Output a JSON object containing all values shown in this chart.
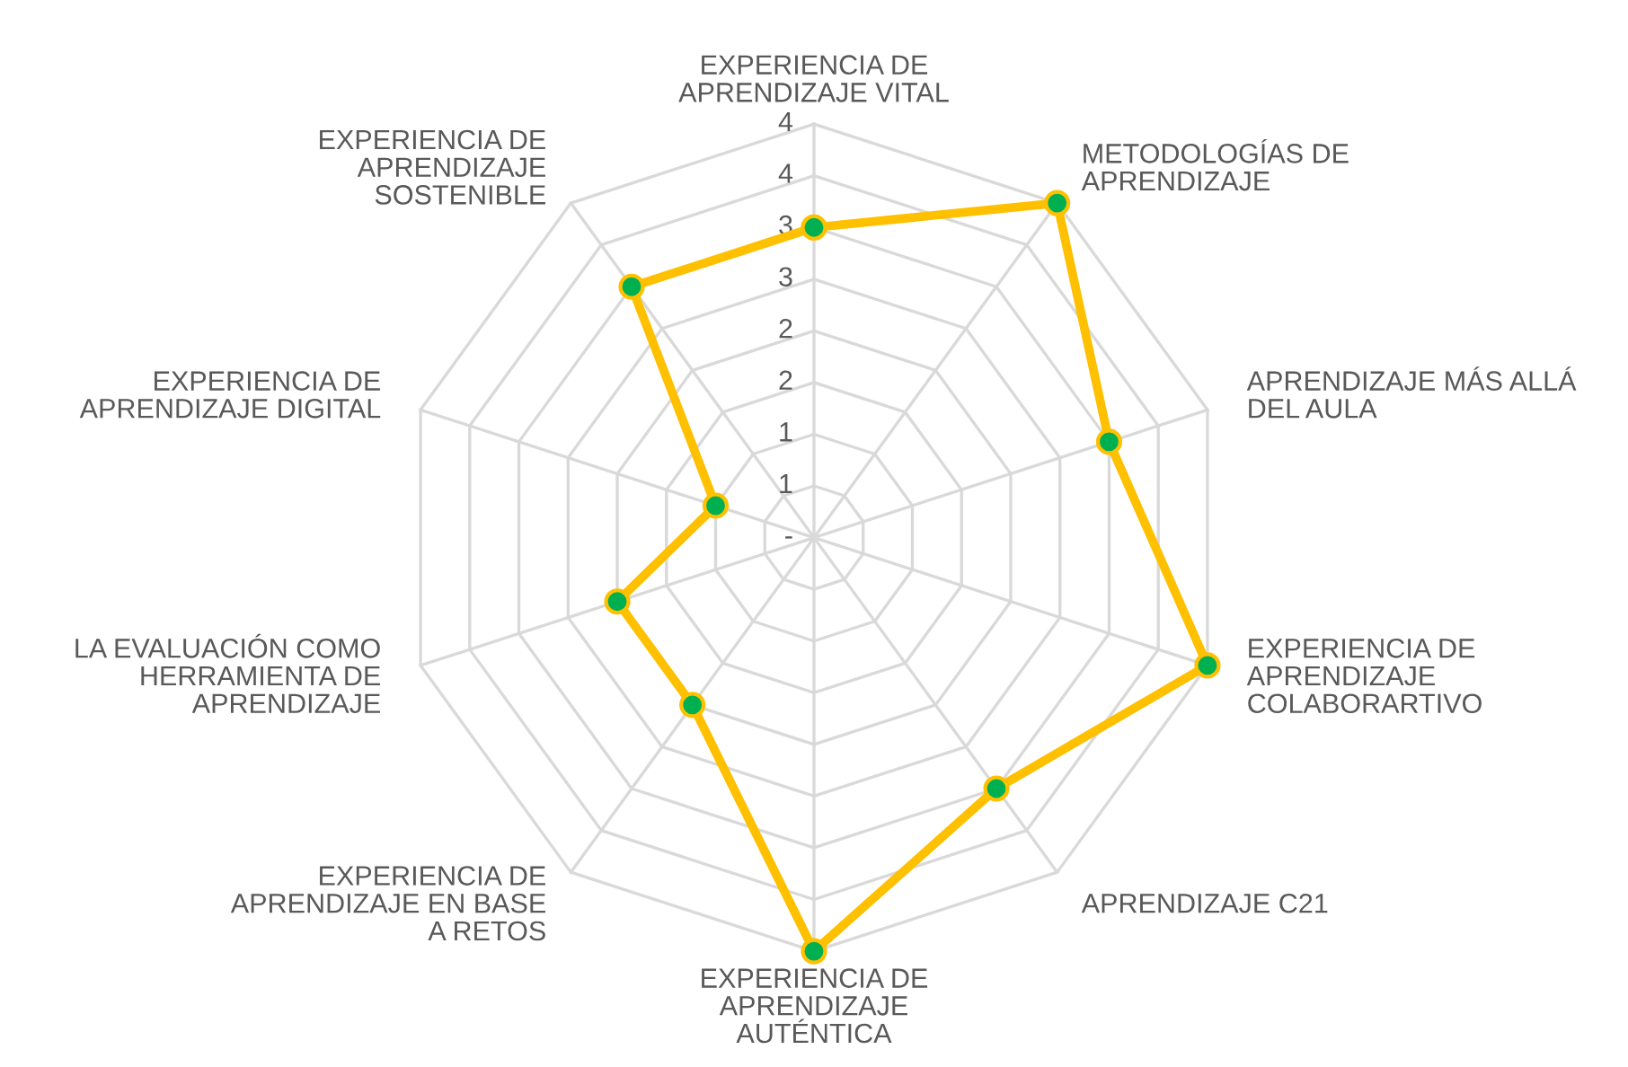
{
  "chart_data": {
    "type": "radar",
    "categories": [
      "EXPERIENCIA DE\nAPRENDIZAJE VITAL",
      "METODOLOGÍAS DE\nAPRENDIZAJE",
      "APRENDIZAJE MÁS ALLÁ\nDEL AULA",
      "EXPERIENCIA DE\nAPRENDIZAJE\nCOLABORARTIVO",
      "APRENDIZAJE C21",
      "EXPERIENCIA DE\nAPRENDIZAJE\nAUTÉNTICA",
      "EXPERIENCIA DE\nAPRENDIZAJE EN BASE\nA RETOS",
      "LA EVALUACIÓN COMO\nHERRAMIENTA DE\nAPRENDIZAJE",
      "EXPERIENCIA DE\nAPRENDIZAJE DIGITAL",
      "EXPERIENCIA DE\nAPRENDIZAJE\nSOSTENIBLE"
    ],
    "series": [
      {
        "color": "#ffc000",
        "values": [
          3,
          4,
          3,
          4,
          3,
          4,
          2,
          2,
          1,
          3
        ]
      }
    ],
    "ylim": [
      0,
      4
    ],
    "yticks": [
      {
        "value": 0,
        "label": "-"
      },
      {
        "value": 0.5,
        "label": "1"
      },
      {
        "value": 1,
        "label": "1"
      },
      {
        "value": 1.5,
        "label": "2"
      },
      {
        "value": 2,
        "label": "2"
      },
      {
        "value": 2.5,
        "label": "3"
      },
      {
        "value": 3,
        "label": "3"
      },
      {
        "value": 3.5,
        "label": "4"
      },
      {
        "value": 4,
        "label": "4"
      }
    ],
    "grid": true,
    "marker": "circle",
    "line_style": "solid"
  }
}
